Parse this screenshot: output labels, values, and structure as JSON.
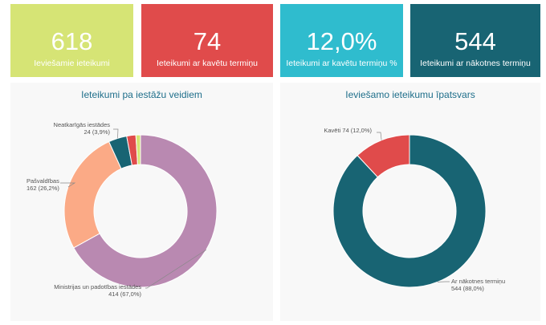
{
  "kpis": [
    {
      "value": "618",
      "label": "Ieviešamie ieteikumi",
      "color": "#d6e475"
    },
    {
      "value": "74",
      "label": "Ieteikumi ar kavētu termiņu",
      "color": "#e04b4b"
    },
    {
      "value": "12,0%",
      "label": "Ieteikumi ar kavētu termiņu %",
      "color": "#2fbcce"
    },
    {
      "value": "544",
      "label": "Ieteikumi ar nākotnes termiņu",
      "color": "#186473"
    }
  ],
  "chart_data": [
    {
      "type": "pie",
      "title": "Ieteikumi pa iestāžu veidiem",
      "donut": true,
      "slices": [
        {
          "name": "Ministrijas un padotības iestādes",
          "value": 414,
          "percent": "67,0%",
          "color": "#b989b1",
          "label_line1": "Ministrijas un padotības iestādes",
          "label_line2": "414 (67,0%)"
        },
        {
          "name": "Pašvaldības",
          "value": 162,
          "percent": "26,2%",
          "color": "#fbaa86",
          "label_line1": "Pašvaldības",
          "label_line2": "162 (26,2%)"
        },
        {
          "name": "Neatkarīgās iestādes",
          "value": 24,
          "percent": "3,9%",
          "color": "#186473",
          "label_line1": "Neatkarīgās iestādes",
          "label_line2": "24 (3,9%)"
        },
        {
          "name": "",
          "value": 12,
          "percent": "1,9%",
          "color": "#e04b4b"
        },
        {
          "name": "",
          "value": 6,
          "percent": "1,0%",
          "color": "#d6e475"
        }
      ]
    },
    {
      "type": "pie",
      "title": "Ieviešamo ieteikumu īpatsvars",
      "donut": true,
      "slices": [
        {
          "name": "Ar nākotnes termiņu",
          "value": 544,
          "percent": "88,0%",
          "color": "#186473",
          "label_line1": "Ar nākotnes termiņu",
          "label_line2": "544 (88,0%)"
        },
        {
          "name": "Kavēti",
          "value": 74,
          "percent": "12,0%",
          "color": "#e04b4b",
          "label_line1": "Kavēti 74 (12,0%)"
        }
      ]
    }
  ]
}
